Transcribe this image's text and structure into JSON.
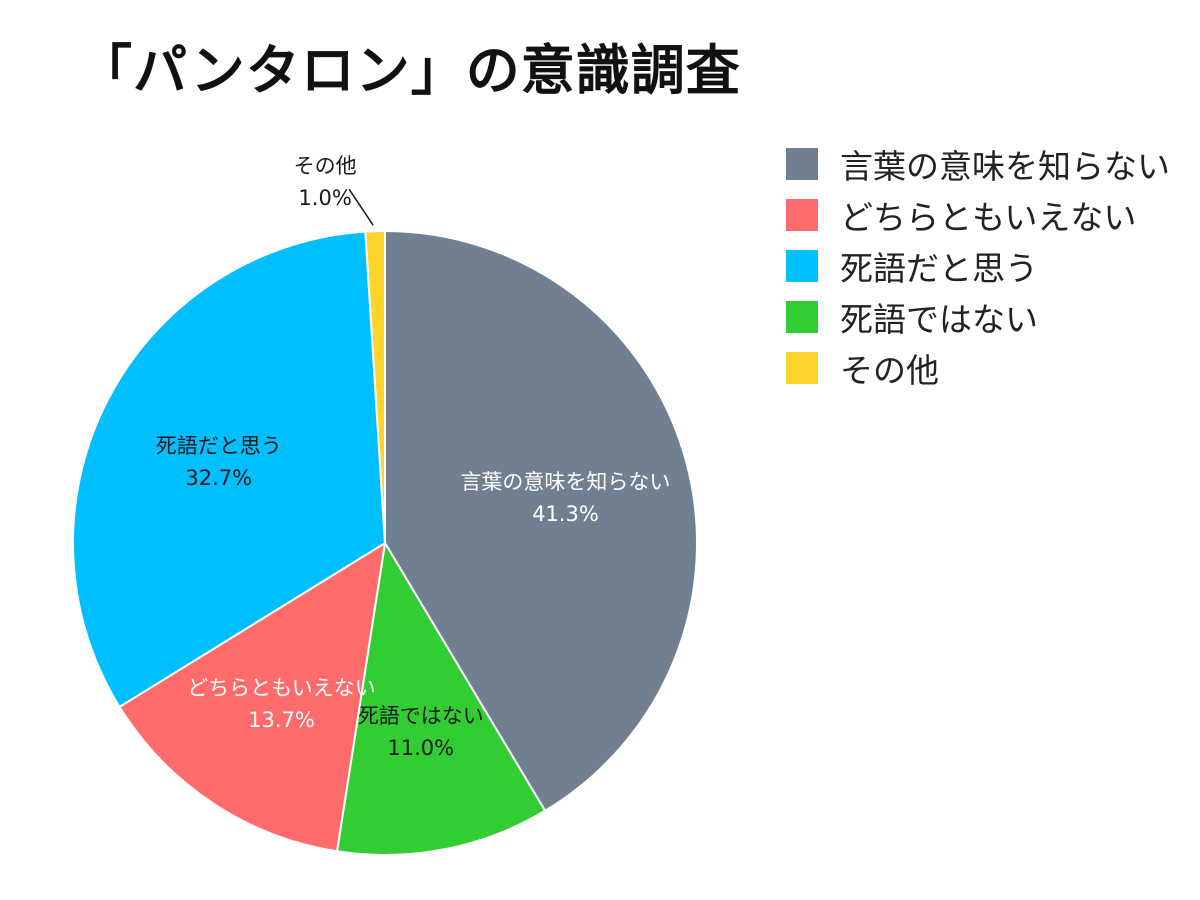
{
  "title": "「パンタロン」の意識調査",
  "chart_data": {
    "type": "pie",
    "start_angle_deg": 0,
    "direction": "clockwise",
    "slices": [
      {
        "label": "言葉の意味を知らない",
        "value": 41.3,
        "value_label": "41.3%",
        "color": "#718090",
        "text_color": "#ffffff"
      },
      {
        "label": "死語ではない",
        "value": 11.0,
        "value_label": "11.0%",
        "color": "#32cd32",
        "text_color": "#1a1a1a"
      },
      {
        "label": "どちらともいえない",
        "value": 13.7,
        "value_label": "13.7%",
        "color": "#ff6a6a",
        "text_color": "#ffffff"
      },
      {
        "label": "死語だと思う",
        "value": 32.7,
        "value_label": "32.7%",
        "color": "#00bfff",
        "text_color": "#1a1a1a"
      },
      {
        "label": "その他",
        "value": 1.0,
        "value_label": "1.0%",
        "color": "#ffd42a",
        "text_color": "#1a1a1a",
        "outside": true
      }
    ],
    "legend": [
      {
        "label": "言葉の意味を知らない",
        "color": "#718090"
      },
      {
        "label": "どちらともいえない",
        "color": "#ff6a6a"
      },
      {
        "label": "死語だと思う",
        "color": "#00bfff"
      },
      {
        "label": "死語ではない",
        "color": "#32cd32"
      },
      {
        "label": "その他",
        "color": "#ffd42a"
      }
    ],
    "legend_position": "top-right"
  }
}
